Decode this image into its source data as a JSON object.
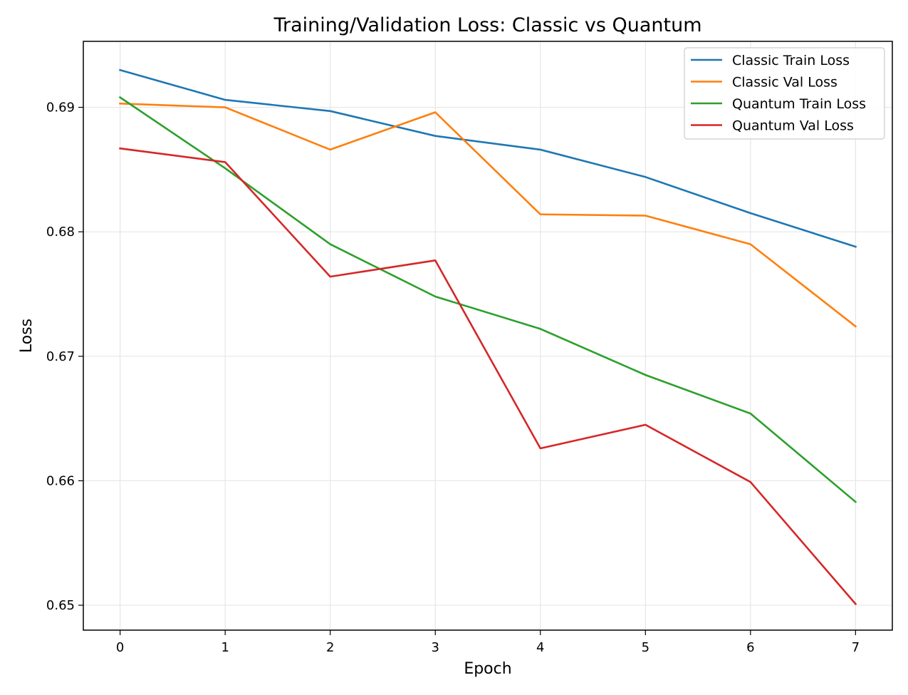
{
  "chart_data": {
    "type": "line",
    "title": "Training/Validation Loss: Classic vs Quantum",
    "xlabel": "Epoch",
    "ylabel": "Loss",
    "x": [
      0,
      1,
      2,
      3,
      4,
      5,
      6,
      7
    ],
    "xlim": [
      -0.35,
      7.35
    ],
    "ylim": [
      0.648,
      0.6953
    ],
    "xticks": [
      0,
      1,
      2,
      3,
      4,
      5,
      6,
      7
    ],
    "yticks": [
      0.65,
      0.66,
      0.67,
      0.68,
      0.69
    ],
    "ytick_labels": [
      "0.65",
      "0.66",
      "0.67",
      "0.68",
      "0.69"
    ],
    "grid": true,
    "legend_position": "top-right",
    "series": [
      {
        "name": "Classic Train Loss",
        "color": "#1f77b4",
        "values": [
          0.693,
          0.6906,
          0.6897,
          0.6877,
          0.6866,
          0.6844,
          0.6815,
          0.6788
        ]
      },
      {
        "name": "Classic Val Loss",
        "color": "#ff7f0e",
        "values": [
          0.6903,
          0.69,
          0.6866,
          0.6896,
          0.6814,
          0.6813,
          0.679,
          0.6724
        ]
      },
      {
        "name": "Quantum Train Loss",
        "color": "#2ca02c",
        "values": [
          0.6908,
          0.6851,
          0.679,
          0.6748,
          0.6722,
          0.6685,
          0.6654,
          0.6583
        ]
      },
      {
        "name": "Quantum Val Loss",
        "color": "#d62728",
        "values": [
          0.6867,
          0.6856,
          0.6764,
          0.6777,
          0.6626,
          0.6645,
          0.6599,
          0.6501
        ]
      }
    ]
  }
}
